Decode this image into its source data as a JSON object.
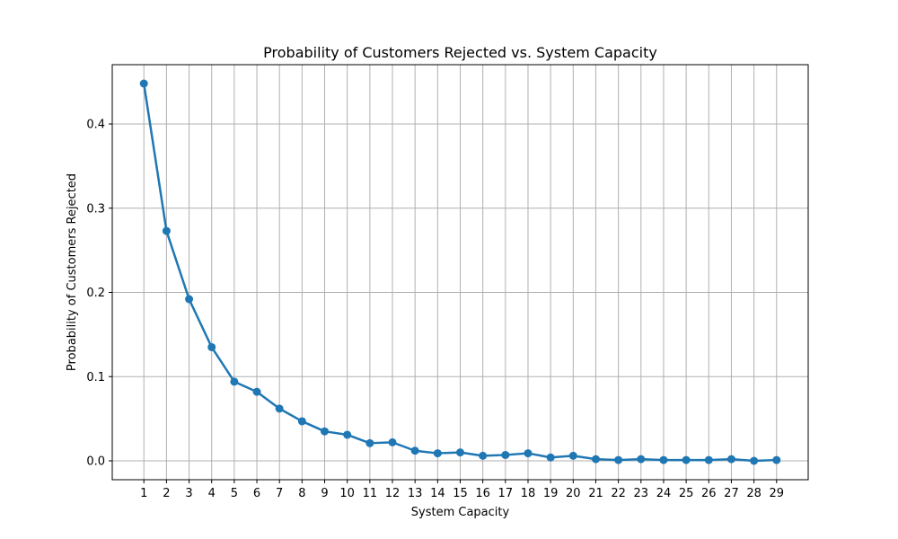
{
  "chart_data": {
    "type": "line",
    "title": "Probability of Customers Rejected vs. System Capacity",
    "xlabel": "System Capacity",
    "ylabel": "Probability of Customers Rejected",
    "x": [
      1,
      2,
      3,
      4,
      5,
      6,
      7,
      8,
      9,
      10,
      11,
      12,
      13,
      14,
      15,
      16,
      17,
      18,
      19,
      20,
      21,
      22,
      23,
      24,
      25,
      26,
      27,
      28,
      29
    ],
    "series": [
      {
        "values": [
          0.448,
          0.273,
          0.192,
          0.135,
          0.094,
          0.082,
          0.062,
          0.047,
          0.035,
          0.031,
          0.021,
          0.022,
          0.012,
          0.009,
          0.01,
          0.006,
          0.007,
          0.009,
          0.004,
          0.006,
          0.002,
          0.001,
          0.002,
          0.001,
          0.001,
          0.001,
          0.002,
          0.0,
          0.001
        ],
        "color": "#1f77b4",
        "marker": "circle"
      }
    ],
    "xticks": [
      "1",
      "2",
      "3",
      "4",
      "5",
      "6",
      "7",
      "8",
      "9",
      "10",
      "11",
      "12",
      "13",
      "14",
      "15",
      "16",
      "17",
      "18",
      "19",
      "20",
      "21",
      "22",
      "23",
      "24",
      "25",
      "26",
      "27",
      "28",
      "29"
    ],
    "yticks": [
      0.0,
      0.1,
      0.2,
      0.3,
      0.4
    ],
    "ytick_labels": [
      "0.0",
      "0.1",
      "0.2",
      "0.3",
      "0.4"
    ],
    "xlim": [
      -0.4,
      30.4
    ],
    "ylim": [
      -0.0224,
      0.4704
    ],
    "grid": true,
    "legend": false
  }
}
